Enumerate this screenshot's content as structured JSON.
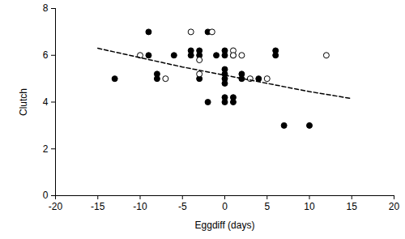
{
  "chart_data": {
    "type": "scatter",
    "x_label": "Eggdiff (days)",
    "y_label": "Clutch",
    "xlim": [
      -20,
      20
    ],
    "ylim": [
      0,
      8
    ],
    "xticks": [
      -20,
      -15,
      -10,
      -5,
      0,
      5,
      10,
      15,
      20
    ],
    "yticks": [
      0,
      2,
      4,
      6,
      8
    ],
    "grid": false,
    "series": [
      {
        "type": "scatter",
        "color": "#000000",
        "marker": "circle",
        "x": [
          -13,
          -9,
          -9,
          -8,
          -8,
          -6,
          -4,
          -4,
          -3,
          -3,
          -3,
          -2,
          -2,
          -1,
          0,
          0,
          0,
          0,
          0,
          0,
          0,
          0,
          1,
          1,
          1,
          2,
          2,
          4,
          6,
          6,
          7,
          10
        ],
        "values": [
          5,
          7,
          6,
          5.2,
          5,
          6,
          6.2,
          6,
          6.2,
          6,
          5,
          7,
          4,
          6,
          6.2,
          6,
          5.4,
          5.2,
          5,
          4.8,
          4.2,
          4,
          4.2,
          4,
          6,
          5.2,
          5,
          5,
          6.2,
          6,
          3,
          3
        ]
      },
      {
        "type": "scatter",
        "color": "#000000",
        "marker": "circle-open",
        "x": [
          -10,
          -7,
          -4,
          -3,
          -3,
          -1.5,
          1,
          1,
          2,
          3,
          5,
          12
        ],
        "values": [
          6,
          5,
          7,
          5.8,
          5.2,
          7,
          6.2,
          6,
          6,
          5,
          5,
          6
        ]
      },
      {
        "type": "line",
        "color": "#000000",
        "line_style": "dashed",
        "x": [
          -15,
          -10,
          -5,
          0,
          5,
          10,
          15
        ],
        "values": [
          6.3,
          5.9,
          5.5,
          5.15,
          4.8,
          4.45,
          4.15
        ]
      }
    ]
  }
}
